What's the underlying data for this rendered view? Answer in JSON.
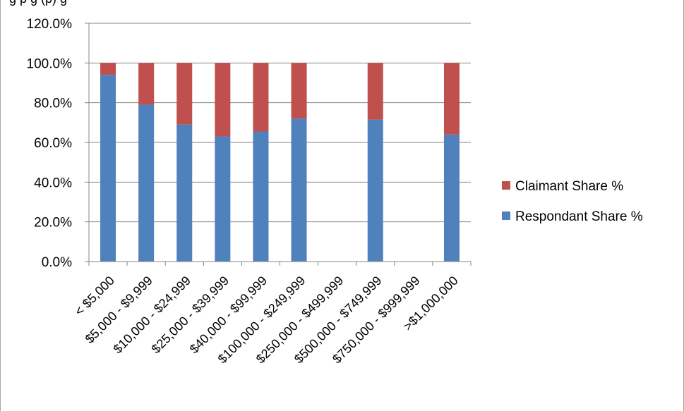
{
  "top_text": "g                                                                                              p                                                                          g                                  (p)            g",
  "chart_data": {
    "type": "bar",
    "stacked": true,
    "categories": [
      "< $5,000",
      "$5,000 - $9,999",
      "$10,000 - $24,999",
      "$25,000 - $39,999",
      "$40,000 - $99,999",
      "$100,000 - $249,999",
      "$250,000 - $499,999",
      "$500,000 - $749,999",
      "$750,000 - $999,999",
      ">$1,000,000"
    ],
    "series": [
      {
        "name": "Respondant Share %",
        "color": "#4f81bd",
        "values": [
          94,
          79,
          69,
          63,
          65.5,
          72,
          null,
          71.5,
          null,
          64
        ]
      },
      {
        "name": "Claimant Share %",
        "color": "#c0504d",
        "values": [
          6,
          21,
          31,
          37,
          34.5,
          28,
          null,
          28.5,
          null,
          36
        ]
      }
    ],
    "ylim": [
      0,
      120
    ],
    "yticks": [
      "0.0%",
      "20.0%",
      "40.0%",
      "60.0%",
      "80.0%",
      "100.0%",
      "120.0%"
    ],
    "grid": true,
    "legend_position": "right",
    "legend_order": [
      "Claimant Share %",
      "Respondant Share %"
    ]
  }
}
